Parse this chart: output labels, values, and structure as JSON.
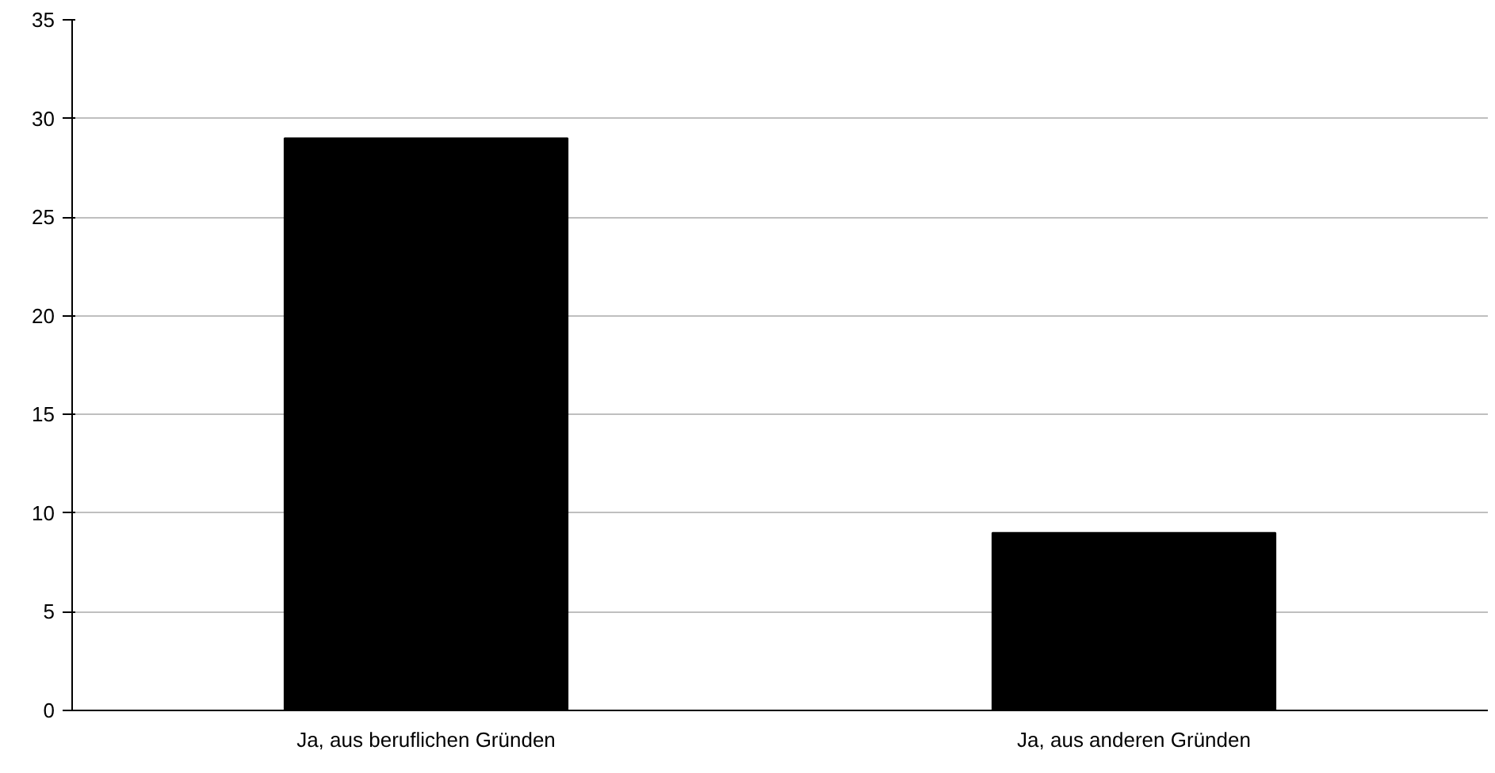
{
  "chart_data": {
    "type": "bar",
    "categories": [
      "Ja, aus beruflichen Gründen",
      "Ja, aus anderen Gründen"
    ],
    "values": [
      29,
      9
    ],
    "color": "#000000",
    "ylim": [
      0,
      35
    ],
    "yticks": [
      0,
      5,
      10,
      15,
      20,
      25,
      30,
      35
    ],
    "grid": "y"
  }
}
